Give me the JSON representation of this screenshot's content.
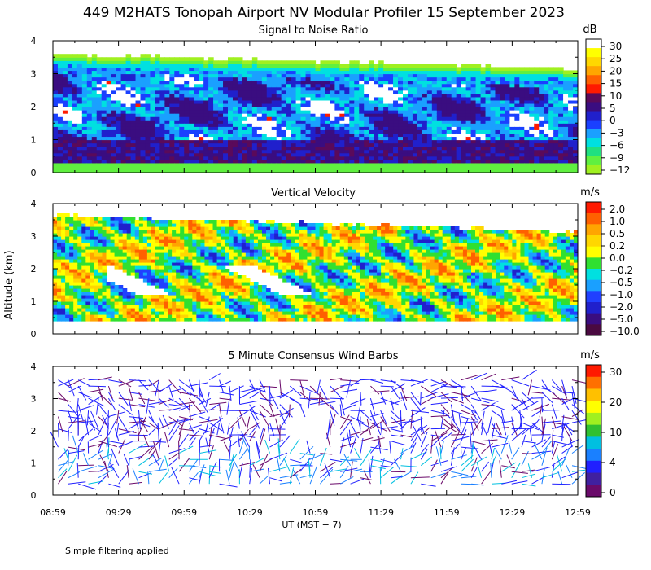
{
  "figure": {
    "title": "449 M2HATS Tonopah Airport NV Modular Profiler 15 September 2023",
    "ylabel": "Altitude (km)",
    "xlabel": "UT  (MST − 7)",
    "footnote": "Simple filtering applied"
  },
  "chart_data": [
    {
      "type": "heatmap",
      "title": "Signal to Noise Ratio",
      "units": "dB",
      "xlabel": "UT (MST − 7)",
      "ylabel": "Altitude (km)",
      "x_ticks": [
        "08:59",
        "09:29",
        "09:59",
        "10:29",
        "10:59",
        "11:29",
        "11:59",
        "12:29",
        "12:59"
      ],
      "y_ticks": [
        "0",
        "1",
        "2",
        "3",
        "4"
      ],
      "ylim": [
        0,
        4
      ],
      "colorbar_ticks": [
        "30",
        "25",
        "20",
        "15",
        "10",
        "5",
        "0",
        "−3",
        "−6",
        "−9",
        "−12"
      ],
      "colorbar_colors": [
        "#ffffff",
        "#ffff00",
        "#ffd700",
        "#ffa500",
        "#ff6000",
        "#ff1a00",
        "#5a0a5a",
        "#3a0d80",
        "#2020cc",
        "#1a40ff",
        "#1aa0ff",
        "#00e0e0",
        "#20e080",
        "#60f040",
        "#a0f020"
      ],
      "data_top_km": 3.5
    },
    {
      "type": "heatmap",
      "title": "Vertical Velocity",
      "units": "m/s",
      "xlabel": "UT (MST − 7)",
      "ylabel": "Altitude (km)",
      "y_ticks": [
        "0",
        "1",
        "2",
        "3",
        "4"
      ],
      "ylim": [
        0,
        4
      ],
      "colorbar_ticks": [
        "2.0",
        "1.0",
        "0.5",
        "0.2",
        "0.0",
        "−0.2",
        "−0.5",
        "−1.0",
        "−2.0",
        "−5.0",
        "−10.0"
      ],
      "colorbar_colors": [
        "#ff1a00",
        "#ff6000",
        "#ffa500",
        "#ffd700",
        "#ffff00",
        "#30e030",
        "#00e0e0",
        "#1aa0ff",
        "#2040ff",
        "#2020cc",
        "#3a0d80",
        "#4a0a40"
      ]
    },
    {
      "type": "scatter",
      "title": "5 Minute Consensus Wind Barbs",
      "units": "m/s",
      "xlabel": "UT (MST − 7)",
      "ylabel": "Altitude (km)",
      "y_ticks": [
        "0",
        "1",
        "2",
        "3",
        "4"
      ],
      "ylim": [
        0,
        4
      ],
      "colorbar_ticks": [
        "30",
        "20",
        "10",
        "4",
        "0"
      ],
      "colorbar_colors": [
        "#ff1a00",
        "#ff7000",
        "#ffc000",
        "#ffff00",
        "#a0f020",
        "#30c030",
        "#00c0e0",
        "#1a80ff",
        "#2020ff",
        "#4020a0",
        "#6a0a6a"
      ]
    }
  ],
  "colors": {
    "axis": "#000000",
    "background": "#ffffff"
  }
}
